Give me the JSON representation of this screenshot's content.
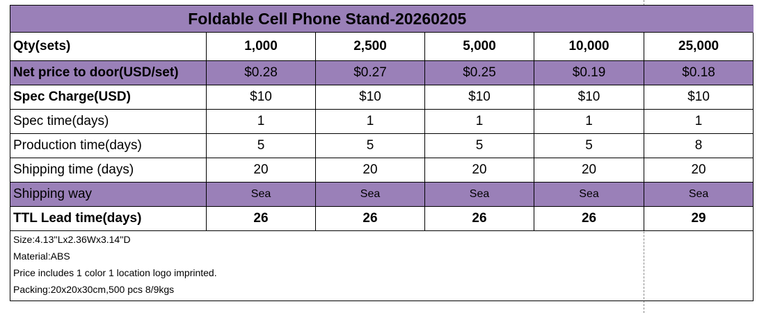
{
  "title": "Foldable Cell Phone Stand-20260205",
  "colors": {
    "header_purple": "#9a80b8"
  },
  "rows": [
    {
      "label": "Qty(sets)",
      "values": [
        "1,000",
        "2,500",
        "5,000",
        "10,000",
        "25,000"
      ]
    },
    {
      "label": "Net price to door(USD/set)",
      "values": [
        "$0.28",
        "$0.27",
        "$0.25",
        "$0.19",
        "$0.18"
      ]
    },
    {
      "label": "Spec Charge(USD)",
      "values": [
        "$10",
        "$10",
        "$10",
        "$10",
        "$10"
      ]
    },
    {
      "label": "Spec time(days)",
      "values": [
        "1",
        "1",
        "1",
        "1",
        "1"
      ]
    },
    {
      "label": "Production time(days)",
      "values": [
        "5",
        "5",
        "5",
        "5",
        "8"
      ]
    },
    {
      "label": "Shipping time (days)",
      "values": [
        "20",
        "20",
        "20",
        "20",
        "20"
      ]
    },
    {
      "label": "Shipping way",
      "values": [
        "Sea",
        "Sea",
        "Sea",
        "Sea",
        "Sea"
      ]
    },
    {
      "label": "TTL Lead time(days)",
      "values": [
        "26",
        "26",
        "26",
        "26",
        "29"
      ]
    }
  ],
  "notes": [
    "Size:4.13''Lx2.36Wx3.14''D",
    "Material:ABS",
    "Price includes 1 color 1 location logo imprinted.",
    "Packing:20x20x30cm,500 pcs  8/9kgs"
  ]
}
